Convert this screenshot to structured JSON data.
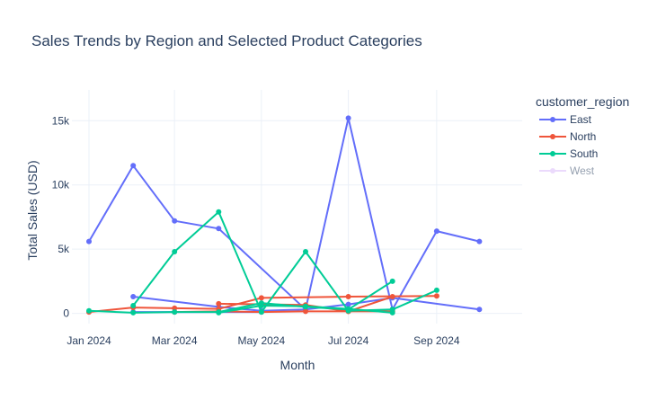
{
  "chart_data": {
    "type": "line",
    "title": "Sales Trends by Region and Selected Product Categories",
    "xlabel": "Month",
    "ylabel": "Total Sales (USD)",
    "x_ticks": [
      "Jan 2024",
      "Mar 2024",
      "May 2024",
      "Jul 2024",
      "Sep 2024"
    ],
    "x_tick_dates": [
      "2024-01-01",
      "2024-03-01",
      "2024-05-01",
      "2024-07-01",
      "2024-09-01"
    ],
    "y_ticks": [
      0,
      5000,
      10000,
      15000
    ],
    "y_tick_labels": [
      "0",
      "5k",
      "10k",
      "15k"
    ],
    "xlim": [
      "2023-12-20",
      "2024-10-31"
    ],
    "ylim": [
      -800,
      17400
    ],
    "grid": true,
    "legend": {
      "title": "customer_region",
      "placement": "top-right"
    },
    "series": [
      {
        "name": "East",
        "color": "#636efa",
        "visible": true,
        "segments": [
          [
            [
              "2024-01-01",
              5600
            ],
            [
              "2024-02-01",
              11500
            ],
            [
              "2024-03-01",
              7200
            ],
            [
              "2024-04-01",
              6600
            ],
            [
              "2024-06-01",
              300
            ],
            [
              "2024-07-01",
              15200
            ],
            [
              "2024-08-01",
              300
            ],
            [
              "2024-09-01",
              6400
            ],
            [
              "2024-10-01",
              5600
            ]
          ],
          [
            [
              "2024-02-01",
              1300
            ],
            [
              "2024-04-01",
              500
            ],
            [
              "2024-05-01",
              200
            ],
            [
              "2024-06-01",
              300
            ],
            [
              "2024-07-01",
              700
            ],
            [
              "2024-08-01",
              1200
            ],
            [
              "2024-10-01",
              300
            ]
          ],
          [
            [
              "2024-02-01",
              100
            ],
            [
              "2024-03-01",
              100
            ],
            [
              "2024-04-01",
              100
            ],
            [
              "2024-05-01",
              100
            ]
          ]
        ]
      },
      {
        "name": "North",
        "color": "#ef553b",
        "visible": true,
        "segments": [
          [
            [
              "2024-01-01",
              100
            ],
            [
              "2024-02-01",
              450
            ],
            [
              "2024-03-01",
              400
            ],
            [
              "2024-04-01",
              350
            ],
            [
              "2024-05-01",
              1200
            ],
            [
              "2024-07-01",
              1300
            ],
            [
              "2024-09-01",
              1350
            ]
          ],
          [
            [
              "2024-04-01",
              750
            ],
            [
              "2024-06-01",
              650
            ],
            [
              "2024-07-01",
              150
            ],
            [
              "2024-08-01",
              1300
            ]
          ],
          [
            [
              "2024-03-01",
              100
            ],
            [
              "2024-04-01",
              150
            ],
            [
              "2024-05-01",
              100
            ],
            [
              "2024-06-01",
              150
            ],
            [
              "2024-07-01",
              150
            ],
            [
              "2024-08-01",
              150
            ]
          ]
        ]
      },
      {
        "name": "South",
        "color": "#00cc96",
        "visible": true,
        "segments": [
          [
            [
              "2024-01-01",
              200
            ],
            [
              "2024-02-01",
              50
            ],
            [
              "2024-03-01",
              100
            ],
            [
              "2024-04-01",
              100
            ],
            [
              "2024-05-01",
              800
            ],
            [
              "2024-06-01",
              500
            ],
            [
              "2024-07-01",
              300
            ],
            [
              "2024-08-01",
              2500
            ]
          ],
          [
            [
              "2024-02-01",
              600
            ],
            [
              "2024-03-01",
              4800
            ],
            [
              "2024-04-01",
              7900
            ],
            [
              "2024-05-01",
              100
            ],
            [
              "2024-06-01",
              4800
            ],
            [
              "2024-07-01",
              200
            ],
            [
              "2024-08-01",
              300
            ],
            [
              "2024-09-01",
              1800
            ]
          ],
          [
            [
              "2024-04-01",
              50
            ],
            [
              "2024-05-01",
              600
            ],
            [
              "2024-06-01",
              550
            ],
            [
              "2024-07-01",
              350
            ],
            [
              "2024-08-01",
              50
            ]
          ]
        ]
      },
      {
        "name": "West",
        "color": "#d9b7fb",
        "visible": false,
        "segments": []
      }
    ]
  }
}
